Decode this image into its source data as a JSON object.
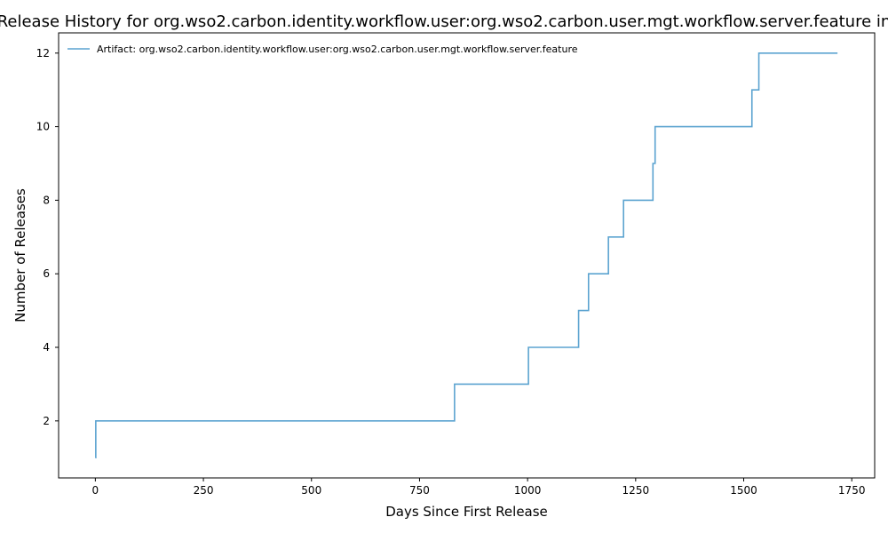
{
  "chart_data": {
    "type": "line",
    "title": "Release History for org.wso2.carbon.identity.workflow.user:org.wso2.carbon.user.mgt.workflow.server.feature in",
    "xlabel": "Days Since First Release",
    "ylabel": "Number of Releases",
    "xlim": [
      -85,
      1803
    ],
    "ylim": [
      0.45,
      12.55
    ],
    "xticks": [
      0,
      250,
      500,
      750,
      1000,
      1250,
      1500,
      1750
    ],
    "yticks": [
      2,
      4,
      6,
      8,
      10,
      12
    ],
    "grid": false,
    "legend_position": "top-left",
    "series": [
      {
        "name": "Artifact: org.wso2.carbon.identity.workflow.user:org.wso2.carbon.user.mgt.workflow.server.feature",
        "color": "#5ba3d0",
        "step": "post",
        "x": [
          0,
          1,
          831,
          1002,
          1118,
          1141,
          1187,
          1222,
          1290,
          1295,
          1519,
          1535,
          1717
        ],
        "y": [
          1,
          2,
          3,
          4,
          5,
          6,
          7,
          8,
          9,
          10,
          11,
          12,
          12
        ]
      }
    ]
  }
}
